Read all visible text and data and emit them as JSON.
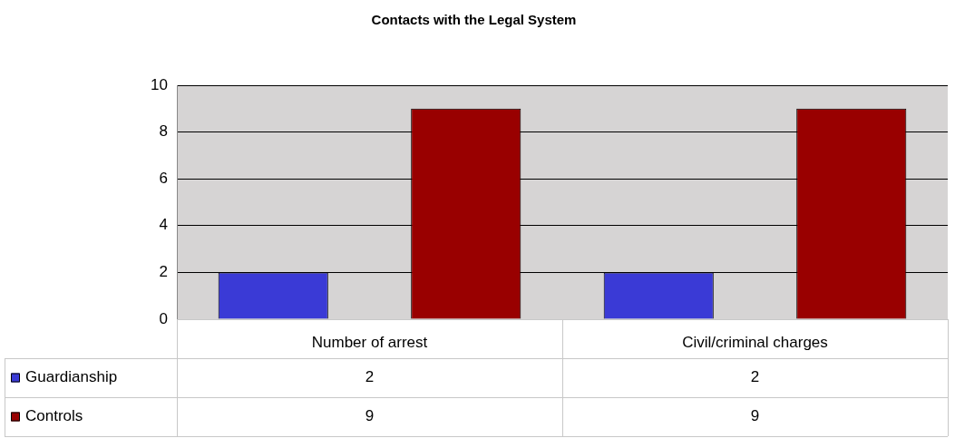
{
  "chart_data": {
    "type": "bar",
    "title": "Contacts with the Legal System",
    "categories": [
      "Number of arrest",
      "Civil/criminal charges"
    ],
    "series": [
      {
        "name": "Guardianship",
        "color": "#3a3ad6",
        "values": [
          2,
          2
        ]
      },
      {
        "name": "Controls",
        "color": "#990000",
        "values": [
          9,
          9
        ]
      }
    ],
    "ylim": [
      0,
      10
    ],
    "yticks": [
      0,
      2,
      4,
      6,
      8,
      10
    ],
    "grid": "y",
    "legend": "bottom left",
    "data_labels": true
  }
}
